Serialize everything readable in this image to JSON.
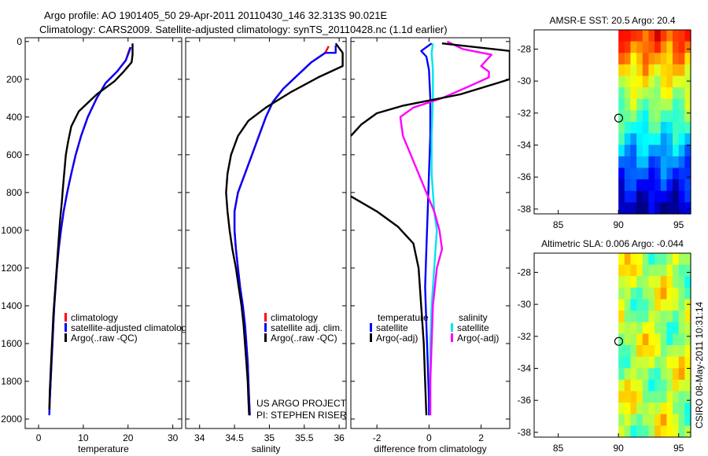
{
  "header": {
    "line1": "Argo profile: AO 1901405_50 29-Apr-2011 20110430_146 32.313S 90.021E",
    "line2": "Climatology: CARS2009. Satellite-adjusted climatology: synTS_20110428.nc (1.1d earlier)"
  },
  "project_note": {
    "line1": "US ARGO PROJECT",
    "line2": "PI: STEPHEN RISER"
  },
  "footer_stamp": "CSIRO 08-May-2011 10:31:14",
  "colors": {
    "climatology": "#ff0000",
    "satellite": "#0000ff",
    "argo": "#000000",
    "sat_salinity": "#00e5ee",
    "argo_salinity": "#ff00ff"
  },
  "chart_data": [
    {
      "type": "line",
      "xlabel": "temperature",
      "ylim": [
        2050,
        -20
      ],
      "xlim": [
        -3,
        32
      ],
      "xticks": [
        0,
        10,
        20,
        30
      ],
      "yticks": [
        0,
        200,
        400,
        600,
        800,
        1000,
        1200,
        1400,
        1600,
        1800,
        2000
      ],
      "legend": [
        "climatology",
        "satellite-adjusted climatolog",
        "Argo(..raw -QC)"
      ],
      "series": [
        {
          "name": "climatology",
          "color": "#ff0000",
          "points": [
            [
              20.5,
              30
            ],
            [
              20.2,
              50
            ],
            [
              19.5,
              100
            ],
            [
              17.5,
              160
            ],
            [
              15,
              220
            ],
            [
              13,
              300
            ],
            [
              11,
              400
            ],
            [
              9.5,
              500
            ],
            [
              8.3,
              600
            ],
            [
              7.3,
              700
            ],
            [
              6.4,
              800
            ],
            [
              5.6,
              900
            ],
            [
              5,
              1000
            ],
            [
              4.5,
              1100
            ],
            [
              4.1,
              1200
            ],
            [
              3.8,
              1300
            ],
            [
              3.5,
              1400
            ],
            [
              3.3,
              1500
            ],
            [
              3.1,
              1600
            ],
            [
              2.9,
              1700
            ],
            [
              2.7,
              1800
            ],
            [
              2.5,
              1900
            ],
            [
              2.4,
              1970
            ]
          ]
        },
        {
          "name": "satellite-adjusted climatolog",
          "color": "#0000ff",
          "points": [
            [
              20.6,
              30
            ],
            [
              20.3,
              50
            ],
            [
              19.5,
              100
            ],
            [
              17.5,
              160
            ],
            [
              15,
              220
            ],
            [
              13,
              300
            ],
            [
              11,
              400
            ],
            [
              9.5,
              500
            ],
            [
              8.3,
              600
            ],
            [
              7.3,
              700
            ],
            [
              6.4,
              800
            ],
            [
              5.6,
              900
            ],
            [
              5,
              1000
            ],
            [
              4.5,
              1100
            ],
            [
              4.1,
              1200
            ],
            [
              3.8,
              1300
            ],
            [
              3.5,
              1400
            ],
            [
              3.3,
              1500
            ],
            [
              3.1,
              1600
            ],
            [
              2.9,
              1700
            ],
            [
              2.7,
              1800
            ],
            [
              2.5,
              1900
            ],
            [
              2.4,
              1980
            ]
          ]
        },
        {
          "name": "Argo(..raw -QC)",
          "color": "#000000",
          "points": [
            [
              21,
              10
            ],
            [
              21,
              70
            ],
            [
              20.8,
              110
            ],
            [
              19,
              160
            ],
            [
              17,
              210
            ],
            [
              13,
              280
            ],
            [
              9,
              370
            ],
            [
              7.3,
              450
            ],
            [
              6.6,
              530
            ],
            [
              6.1,
              600
            ],
            [
              5.8,
              680
            ],
            [
              5.5,
              760
            ],
            [
              5.2,
              850
            ],
            [
              4.8,
              950
            ],
            [
              4.5,
              1050
            ],
            [
              4.2,
              1150
            ],
            [
              3.9,
              1250
            ],
            [
              3.6,
              1350
            ],
            [
              3.3,
              1450
            ],
            [
              3.1,
              1550
            ],
            [
              2.9,
              1650
            ],
            [
              2.7,
              1750
            ],
            [
              2.5,
              1850
            ],
            [
              2.4,
              1950
            ]
          ]
        }
      ]
    },
    {
      "type": "line",
      "xlabel": "salinity",
      "ylim": [
        2050,
        -20
      ],
      "xlim": [
        33.8,
        36.1
      ],
      "xticks": [
        34,
        34.5,
        35,
        35.5,
        36
      ],
      "legend": [
        "climatology",
        "satellite adj. clim.",
        "Argo(..raw -QC)"
      ],
      "series": [
        {
          "name": "climatology",
          "color": "#ff0000",
          "points": [
            [
              35.85,
              25
            ],
            [
              35.8,
              60
            ],
            [
              35.6,
              110
            ],
            [
              35.4,
              180
            ],
            [
              35.2,
              250
            ],
            [
              35.05,
              320
            ],
            [
              34.95,
              400
            ],
            [
              34.85,
              500
            ],
            [
              34.75,
              600
            ],
            [
              34.65,
              700
            ],
            [
              34.55,
              800
            ],
            [
              34.5,
              900
            ],
            [
              34.5,
              1000
            ],
            [
              34.52,
              1100
            ],
            [
              34.55,
              1200
            ],
            [
              34.58,
              1300
            ],
            [
              34.62,
              1400
            ],
            [
              34.65,
              1500
            ],
            [
              34.67,
              1600
            ],
            [
              34.69,
              1700
            ],
            [
              34.7,
              1800
            ],
            [
              34.71,
              1900
            ],
            [
              34.72,
              1980
            ]
          ]
        },
        {
          "name": "satellite adj. clim.",
          "color": "#0000ff",
          "points": [
            [
              35.95,
              20
            ],
            [
              35.95,
              60
            ],
            [
              35.8,
              60
            ],
            [
              35.6,
              110
            ],
            [
              35.4,
              180
            ],
            [
              35.2,
              250
            ],
            [
              35.05,
              320
            ],
            [
              34.95,
              400
            ],
            [
              34.85,
              500
            ],
            [
              34.75,
              600
            ],
            [
              34.65,
              700
            ],
            [
              34.55,
              800
            ],
            [
              34.5,
              900
            ],
            [
              34.5,
              1000
            ],
            [
              34.52,
              1100
            ],
            [
              34.55,
              1200
            ],
            [
              34.58,
              1300
            ],
            [
              34.62,
              1400
            ],
            [
              34.65,
              1500
            ],
            [
              34.67,
              1600
            ],
            [
              34.69,
              1700
            ],
            [
              34.7,
              1800
            ],
            [
              34.71,
              1900
            ],
            [
              34.72,
              1980
            ]
          ]
        },
        {
          "name": "Argo(..raw -QC)",
          "color": "#000000",
          "points": [
            [
              35.95,
              10
            ],
            [
              36.05,
              60
            ],
            [
              36.05,
              130
            ],
            [
              35.7,
              190
            ],
            [
              35.3,
              270
            ],
            [
              34.95,
              350
            ],
            [
              34.7,
              420
            ],
            [
              34.55,
              500
            ],
            [
              34.45,
              600
            ],
            [
              34.4,
              700
            ],
            [
              34.38,
              800
            ],
            [
              34.4,
              900
            ],
            [
              34.43,
              1000
            ],
            [
              34.47,
              1100
            ],
            [
              34.52,
              1200
            ],
            [
              34.56,
              1300
            ],
            [
              34.6,
              1400
            ],
            [
              34.63,
              1500
            ],
            [
              34.65,
              1600
            ],
            [
              34.67,
              1700
            ],
            [
              34.69,
              1800
            ],
            [
              34.7,
              1900
            ],
            [
              34.71,
              1980
            ]
          ]
        }
      ]
    },
    {
      "type": "line",
      "xlabel": "difference from climatology",
      "ylim": [
        2050,
        -20
      ],
      "xlim": [
        -3,
        3.1
      ],
      "xticks": [
        -2,
        0,
        2
      ],
      "legend": [
        "temperature",
        "satellite",
        "Argo(-adj)",
        "salinity",
        "satellite",
        "Argo(-adj)"
      ],
      "series": [
        {
          "name": "satellite",
          "color": "#0000ff",
          "points": [
            [
              0.1,
              10
            ],
            [
              -0.3,
              50
            ],
            [
              -0.1,
              80
            ],
            [
              0,
              150
            ],
            [
              0.05,
              300
            ],
            [
              0.05,
              500
            ],
            [
              0,
              700
            ],
            [
              -0.05,
              900
            ],
            [
              -0.1,
              1100
            ],
            [
              -0.15,
              1300
            ],
            [
              -0.1,
              1500
            ],
            [
              -0.05,
              1700
            ],
            [
              0,
              1900
            ],
            [
              0,
              1980
            ]
          ]
        },
        {
          "name": "satellite",
          "color": "#00e5ee",
          "points": [
            [
              0.15,
              10
            ],
            [
              0.1,
              60
            ],
            [
              0.15,
              150
            ],
            [
              0.15,
              300
            ],
            [
              0.1,
              500
            ],
            [
              0.1,
              700
            ],
            [
              0.2,
              900
            ],
            [
              0.3,
              1000
            ],
            [
              0.2,
              1200
            ],
            [
              0.1,
              1400
            ],
            [
              0.05,
              1600
            ],
            [
              0.05,
              1800
            ],
            [
              0.05,
              1980
            ]
          ]
        },
        {
          "name": "Argo(-adj)",
          "color": "#ff00ff",
          "points": [
            [
              0.7,
              0
            ],
            [
              1.3,
              40
            ],
            [
              2.4,
              70
            ],
            [
              2.2,
              100
            ],
            [
              2.0,
              130
            ],
            [
              2.3,
              160
            ],
            [
              2.3,
              190
            ],
            [
              1.5,
              240
            ],
            [
              0.5,
              300
            ],
            [
              -0.6,
              350
            ],
            [
              -1.1,
              400
            ],
            [
              -1.0,
              500
            ],
            [
              -0.7,
              600
            ],
            [
              -0.4,
              700
            ],
            [
              -0.1,
              800
            ],
            [
              0.2,
              900
            ],
            [
              0.4,
              1000
            ],
            [
              0.5,
              1100
            ],
            [
              0.3,
              1200
            ],
            [
              0.15,
              1400
            ],
            [
              0.1,
              1600
            ],
            [
              0.05,
              1800
            ],
            [
              0.05,
              1980
            ]
          ]
        },
        {
          "name": "Argo(-adj)",
          "color": "#000000",
          "points": [
            [
              0.5,
              10
            ],
            [
              3.1,
              50
            ],
            [
              3.1,
              200
            ],
            [
              1.2,
              280
            ],
            [
              -1.0,
              340
            ],
            [
              -2.0,
              380
            ],
            [
              -2.6,
              440
            ],
            [
              -3,
              500
            ]
          ]
        },
        {
          "name": "Argo(-adj)",
          "color": "#000000",
          "points": [
            [
              -3,
              820
            ],
            [
              -2.0,
              900
            ],
            [
              -1.2,
              980
            ],
            [
              -0.6,
              1070
            ],
            [
              -0.4,
              1200
            ],
            [
              -0.3,
              1400
            ],
            [
              -0.2,
              1600
            ],
            [
              -0.15,
              1800
            ],
            [
              -0.1,
              1980
            ]
          ]
        }
      ]
    },
    {
      "type": "heatmap",
      "title": "AMSR-E SST: 20.5 Argo: 20.4",
      "xlim": [
        83,
        96
      ],
      "ylim": [
        -38.3,
        -26.8
      ],
      "xticks": [
        85,
        90,
        95
      ],
      "yticks": [
        -28,
        -30,
        -32,
        -34,
        -36,
        -38
      ],
      "data_x_start": 90,
      "marker": [
        90.021,
        -32.313
      ],
      "colormap": "jet"
    },
    {
      "type": "heatmap",
      "title": "Altimetric SLA: 0.006 Argo: -0.044",
      "xlim": [
        83,
        96
      ],
      "ylim": [
        -38.3,
        -26.8
      ],
      "xticks": [
        85,
        90,
        95
      ],
      "yticks": [
        -28,
        -30,
        -32,
        -34,
        -36,
        -38
      ],
      "data_x_start": 90,
      "marker": [
        90.021,
        -32.313
      ],
      "colormap": "jet"
    }
  ]
}
